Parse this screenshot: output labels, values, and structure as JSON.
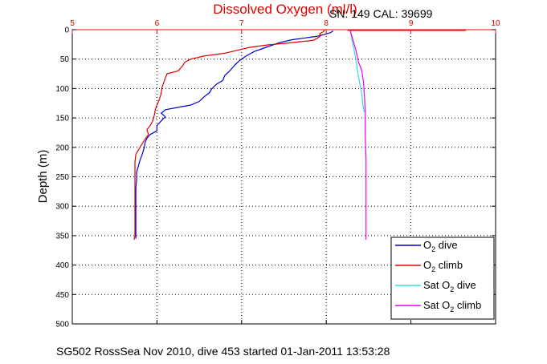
{
  "chart_data": {
    "type": "line",
    "title": "Dissolved Oxygen (ml/l)",
    "serial_label": "SN: 149   CAL: 39699",
    "ylabel": "Depth (m)",
    "xlabel": "",
    "footer": "SG502 RossSea Nov 2010, dive 453 started 01-Jan-2011 13:53:28",
    "xlim": [
      5,
      10
    ],
    "ylim": [
      0,
      500
    ],
    "y_reversed": true,
    "x_axis_position": "top",
    "xticks": [
      "5",
      "6",
      "7",
      "8",
      "9",
      "10"
    ],
    "yticks": [
      "0",
      "50",
      "100",
      "150",
      "200",
      "250",
      "300",
      "350",
      "400",
      "450",
      "500"
    ],
    "grid": true,
    "legend_position": "bottom-right",
    "colors": {
      "axis_top": "#ff0000",
      "grid": "#000000",
      "o2_dive": "#0000cc",
      "o2_climb": "#dd0000",
      "sat_dive": "#33dddd",
      "sat_climb": "#ee00ee"
    },
    "series": [
      {
        "name": "O2 dive",
        "legend_main": "O",
        "legend_sub": "2",
        "legend_rest": " dive",
        "color": "#0000cc",
        "points": [
          [
            8.08,
            2
          ],
          [
            8.05,
            5
          ],
          [
            7.98,
            8
          ],
          [
            7.9,
            11
          ],
          [
            7.75,
            14
          ],
          [
            7.6,
            17
          ],
          [
            7.45,
            22
          ],
          [
            7.35,
            27
          ],
          [
            7.25,
            32
          ],
          [
            7.15,
            37
          ],
          [
            7.05,
            45
          ],
          [
            6.98,
            52
          ],
          [
            6.92,
            60
          ],
          [
            6.86,
            70
          ],
          [
            6.8,
            78
          ],
          [
            6.78,
            86
          ],
          [
            6.7,
            93
          ],
          [
            6.65,
            100
          ],
          [
            6.62,
            107
          ],
          [
            6.55,
            115
          ],
          [
            6.5,
            122
          ],
          [
            6.4,
            128
          ],
          [
            6.25,
            132
          ],
          [
            6.1,
            136
          ],
          [
            6.05,
            142
          ],
          [
            6.1,
            148
          ],
          [
            6.05,
            155
          ],
          [
            6.0,
            163
          ],
          [
            6.0,
            172
          ],
          [
            5.92,
            178
          ],
          [
            5.88,
            185
          ],
          [
            5.86,
            192
          ],
          [
            5.85,
            200
          ],
          [
            5.83,
            210
          ],
          [
            5.8,
            222
          ],
          [
            5.78,
            232
          ],
          [
            5.76,
            242
          ],
          [
            5.76,
            255
          ],
          [
            5.75,
            270
          ],
          [
            5.75,
            290
          ],
          [
            5.75,
            310
          ],
          [
            5.75,
            330
          ],
          [
            5.75,
            345
          ],
          [
            5.75,
            355
          ]
        ]
      },
      {
        "name": "O2 climb",
        "legend_main": "O",
        "legend_sub": "2",
        "legend_rest": " climb",
        "color": "#dd0000",
        "points": [
          [
            7.98,
            1
          ],
          [
            7.96,
            4
          ],
          [
            7.92,
            7
          ],
          [
            7.94,
            10
          ],
          [
            7.9,
            14
          ],
          [
            7.85,
            18
          ],
          [
            7.6,
            22
          ],
          [
            7.3,
            26
          ],
          [
            7.1,
            30
          ],
          [
            6.95,
            35
          ],
          [
            6.8,
            40
          ],
          [
            6.55,
            45
          ],
          [
            6.4,
            50
          ],
          [
            6.33,
            55
          ],
          [
            6.3,
            62
          ],
          [
            6.25,
            70
          ],
          [
            6.12,
            75
          ],
          [
            6.1,
            82
          ],
          [
            6.08,
            90
          ],
          [
            6.06,
            98
          ],
          [
            6.05,
            108
          ],
          [
            6.03,
            118
          ],
          [
            6.0,
            128
          ],
          [
            5.98,
            136
          ],
          [
            5.97,
            145
          ],
          [
            5.95,
            155
          ],
          [
            5.92,
            163
          ],
          [
            5.88,
            170
          ],
          [
            5.9,
            178
          ],
          [
            5.85,
            188
          ],
          [
            5.8,
            200
          ],
          [
            5.75,
            212
          ],
          [
            5.74,
            225
          ],
          [
            5.74,
            245
          ],
          [
            5.74,
            270
          ],
          [
            5.74,
            300
          ],
          [
            5.74,
            330
          ],
          [
            5.74,
            350
          ],
          [
            5.73,
            357
          ]
        ]
      },
      {
        "name": "Sat O2 dive",
        "legend_main": "Sat O",
        "legend_sub": "2",
        "legend_rest": " dive",
        "color": "#33dddd",
        "points": [
          [
            8.28,
            0
          ],
          [
            8.3,
            15
          ],
          [
            8.33,
            35
          ],
          [
            8.36,
            60
          ],
          [
            8.38,
            80
          ],
          [
            8.4,
            95
          ],
          [
            8.42,
            110
          ],
          [
            8.43,
            125
          ],
          [
            8.44,
            135
          ],
          [
            8.45,
            140
          ]
        ]
      },
      {
        "name": "Sat O2 climb",
        "legend_main": "Sat O",
        "legend_sub": "2",
        "legend_rest": " climb",
        "color": "#ee00ee",
        "points": [
          [
            8.28,
            0
          ],
          [
            8.31,
            15
          ],
          [
            8.35,
            35
          ],
          [
            8.38,
            55
          ],
          [
            8.42,
            70
          ],
          [
            8.44,
            90
          ],
          [
            8.45,
            110
          ],
          [
            8.46,
            140
          ],
          [
            8.46,
            180
          ],
          [
            8.47,
            220
          ],
          [
            8.47,
            260
          ],
          [
            8.47,
            300
          ],
          [
            8.47,
            340
          ],
          [
            8.47,
            357
          ]
        ]
      }
    ],
    "surface_line": {
      "name": "surface spike",
      "color": "#ee0000",
      "x": [
        8.25,
        9.65
      ],
      "y": 0
    }
  }
}
